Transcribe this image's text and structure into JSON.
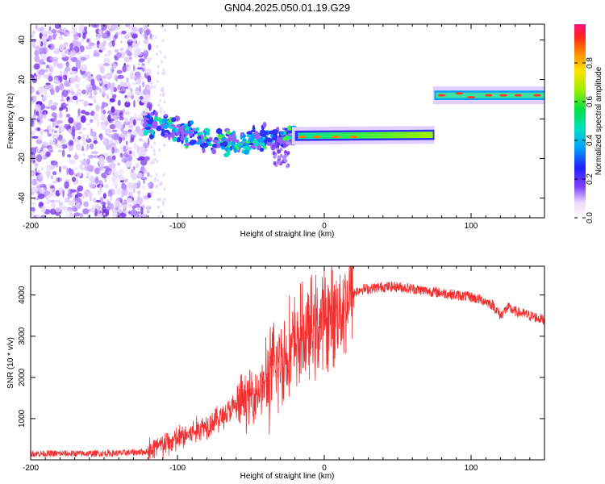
{
  "title": "GN04.2025.050.01.19.G29",
  "chart_data": [
    {
      "type": "heatmap",
      "xlabel": "Height of straight line (km)",
      "ylabel": "Frequency (Hz)",
      "xlim": [
        -200,
        150
      ],
      "ylim": [
        -50,
        48
      ],
      "xticks": [
        -200,
        -100,
        0,
        100
      ],
      "yticks": [
        -40,
        -20,
        0,
        20,
        40
      ],
      "colorbar": {
        "label": "Normalized spectral amplitude",
        "range": [
          0,
          1
        ],
        "ticks": [
          "0.0",
          "0.2",
          "0.4",
          "0.6",
          "0.8"
        ]
      },
      "ridge": {
        "description_values": "approximate dominant frequency (Hz) vs height (km)",
        "x": [
          -120,
          -110,
          -100,
          -90,
          -80,
          -70,
          -60,
          -50,
          -40,
          -30,
          -20,
          -10,
          0,
          10,
          20,
          30,
          40,
          50,
          60,
          70,
          75,
          76,
          90,
          100,
          110,
          120,
          130,
          140,
          150
        ],
        "y": [
          -2,
          -4,
          -6,
          -8,
          -10,
          -11,
          -12,
          -11,
          -9,
          -10,
          -8,
          -8,
          -9,
          -9,
          -9,
          -9,
          -9,
          -9,
          -9,
          -8,
          -8,
          12,
          12,
          12,
          12,
          12,
          12,
          12,
          12
        ]
      }
    },
    {
      "type": "line",
      "xlabel": "Height of straight line (km)",
      "ylabel": "SNR (10 * v/v)",
      "xlim": [
        -200,
        150
      ],
      "ylim": [
        0,
        4700
      ],
      "xticks": [
        -200,
        -100,
        0,
        100
      ],
      "yticks": [
        1000,
        2000,
        3000,
        4000
      ],
      "color": "#f03030",
      "series": [
        {
          "x": [
            -200,
            -180,
            -160,
            -140,
            -120,
            -110,
            -100,
            -90,
            -80,
            -70,
            -60,
            -50,
            -40,
            -35,
            -30,
            -25,
            -20,
            -15,
            -10,
            -5,
            0,
            5,
            10,
            15,
            20,
            25,
            30,
            40,
            50,
            60,
            70,
            80,
            90,
            100,
            110,
            115,
            120,
            125,
            130,
            140,
            150
          ],
          "y": [
            150,
            150,
            150,
            160,
            200,
            350,
            500,
            650,
            850,
            1050,
            1300,
            1550,
            1850,
            2100,
            2400,
            2600,
            2800,
            3000,
            3100,
            3200,
            3400,
            3500,
            3650,
            3850,
            4050,
            4150,
            4150,
            4200,
            4200,
            4150,
            4100,
            4050,
            4000,
            3950,
            3850,
            3750,
            3500,
            3700,
            3600,
            3500,
            3400
          ]
        }
      ]
    }
  ]
}
